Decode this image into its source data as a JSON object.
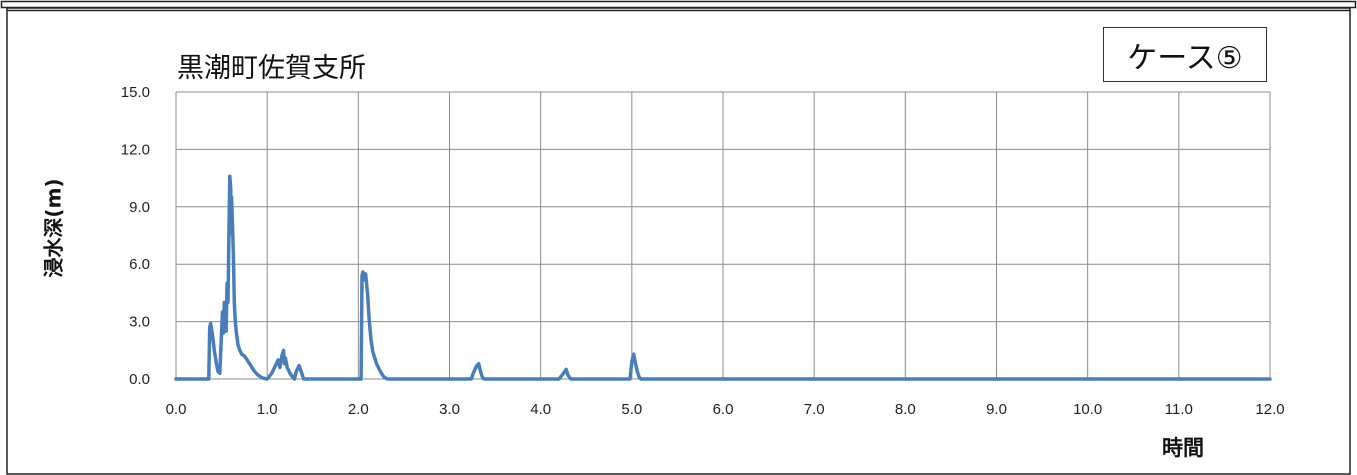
{
  "case_label": "ケース⑤",
  "chart_data": {
    "type": "line",
    "title": "黒潮町佐賀支所",
    "xlabel": "時間",
    "ylabel": "浸水深(m)",
    "xlim": [
      0.0,
      12.0
    ],
    "ylim": [
      0.0,
      15.0
    ],
    "x_ticks": [
      "0.0",
      "1.0",
      "2.0",
      "3.0",
      "4.0",
      "5.0",
      "6.0",
      "7.0",
      "8.0",
      "9.0",
      "10.0",
      "11.0",
      "12.0"
    ],
    "y_ticks": [
      "0.0",
      "3.0",
      "6.0",
      "9.0",
      "12.0",
      "15.0"
    ],
    "grid": true,
    "line_color": "#4a7ebb",
    "series": [
      {
        "x": [
          0.0,
          0.36,
          0.37,
          0.38,
          0.4,
          0.42,
          0.44,
          0.46,
          0.48,
          0.5,
          0.51,
          0.52,
          0.53,
          0.54,
          0.55,
          0.56,
          0.57,
          0.58,
          0.59,
          0.6,
          0.605,
          0.61,
          0.62,
          0.63,
          0.64,
          0.65,
          0.66,
          0.68,
          0.7,
          0.72,
          0.75,
          0.78,
          0.82,
          0.86,
          0.9,
          0.95,
          1.0,
          1.05,
          1.08,
          1.1,
          1.12,
          1.14,
          1.16,
          1.18,
          1.19,
          1.2,
          1.22,
          1.25,
          1.28,
          1.3,
          1.32,
          1.35,
          1.38,
          1.4,
          1.43,
          1.45,
          1.47,
          1.48,
          2.03,
          2.04,
          2.05,
          2.06,
          2.08,
          2.1,
          2.12,
          2.14,
          2.16,
          2.2,
          2.24,
          2.28,
          2.32,
          2.36,
          2.4,
          3.24,
          3.26,
          3.28,
          3.3,
          3.32,
          3.34,
          3.36,
          3.38,
          3.4,
          4.2,
          4.25,
          4.28,
          4.3,
          4.33,
          4.36,
          4.4,
          4.98,
          5.0,
          5.02,
          5.04,
          5.06,
          5.08,
          5.1,
          5.14,
          5.2,
          12.0
        ],
        "y": [
          0.0,
          0.0,
          2.7,
          2.9,
          2.3,
          1.5,
          0.9,
          0.4,
          0.3,
          2.5,
          3.5,
          2.4,
          4.0,
          3.0,
          2.5,
          5.0,
          4.0,
          7.5,
          10.6,
          10.0,
          7.6,
          9.5,
          8.0,
          6.5,
          4.0,
          3.0,
          2.5,
          1.8,
          1.5,
          1.3,
          1.2,
          1.0,
          0.7,
          0.4,
          0.2,
          0.05,
          0.0,
          0.3,
          0.6,
          0.8,
          1.0,
          0.6,
          1.2,
          1.5,
          0.8,
          1.1,
          0.6,
          0.3,
          0.1,
          0.0,
          0.4,
          0.7,
          0.3,
          0.0,
          0.0,
          0.0,
          0.0,
          0.0,
          0.0,
          5.4,
          5.6,
          5.2,
          5.5,
          4.5,
          3.0,
          2.0,
          1.4,
          0.8,
          0.4,
          0.1,
          0.0,
          0.0,
          0.0,
          0.0,
          0.3,
          0.5,
          0.7,
          0.8,
          0.4,
          0.1,
          0.0,
          0.0,
          0.0,
          0.3,
          0.5,
          0.2,
          0.0,
          0.0,
          0.0,
          0.0,
          0.9,
          1.3,
          0.8,
          0.4,
          0.1,
          0.0,
          0.0,
          0.0,
          0.0
        ]
      }
    ]
  }
}
